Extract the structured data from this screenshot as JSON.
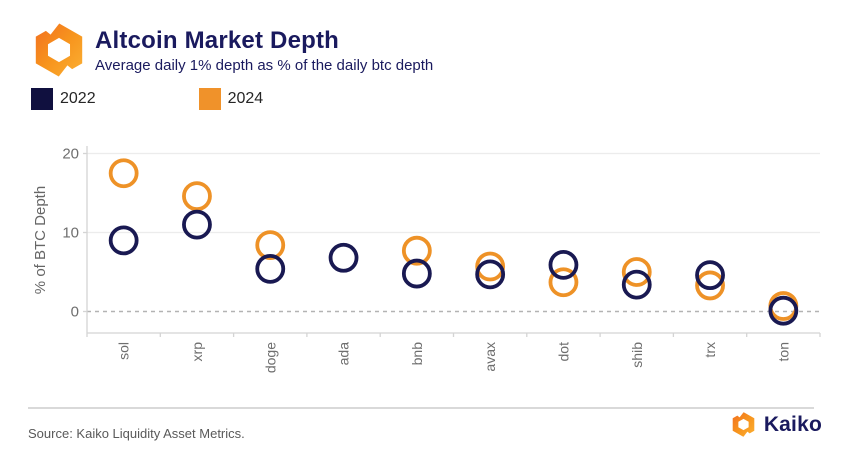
{
  "header": {
    "title": "Altcoin Market Depth",
    "subtitle": "Average daily 1% depth as % of the daily btc depth"
  },
  "legend": [
    {
      "label": "2022",
      "color": "#10103f"
    },
    {
      "label": "2024",
      "color": "#f0922a"
    }
  ],
  "chart_data": {
    "type": "scatter",
    "marker": "open-circle",
    "title": "Altcoin Market Depth",
    "subtitle": "Average daily 1% depth as % of the daily btc depth",
    "categories": [
      "sol",
      "xrp",
      "doge",
      "ada",
      "bnb",
      "avax",
      "dot",
      "shib",
      "trx",
      "ton"
    ],
    "series": [
      {
        "name": "2022",
        "color": "#191952",
        "values": [
          9.0,
          11.0,
          5.4,
          6.8,
          4.8,
          4.7,
          5.9,
          3.4,
          4.6,
          0.1
        ]
      },
      {
        "name": "2024",
        "color": "#ee9227",
        "values": [
          17.5,
          14.6,
          8.4,
          null,
          7.7,
          5.7,
          3.7,
          5.0,
          3.3,
          0.7
        ]
      }
    ],
    "xlabel": "",
    "ylabel": "% of BTC Depth",
    "yticks": [
      0,
      10,
      20
    ],
    "ylim": [
      -2.5,
      21
    ],
    "grid": "horizontal",
    "zero_line": "dashed",
    "legend_position": "top-left",
    "axis_color": "#d4d4d4",
    "grid_color": "#ececec",
    "zero_line_color": "#b3b3b3",
    "tick_label_color": "#6e6e6e"
  },
  "footer": {
    "source": "Source: Kaiko Liquidity Asset Metrics.",
    "brand_name": "Kaiko"
  }
}
